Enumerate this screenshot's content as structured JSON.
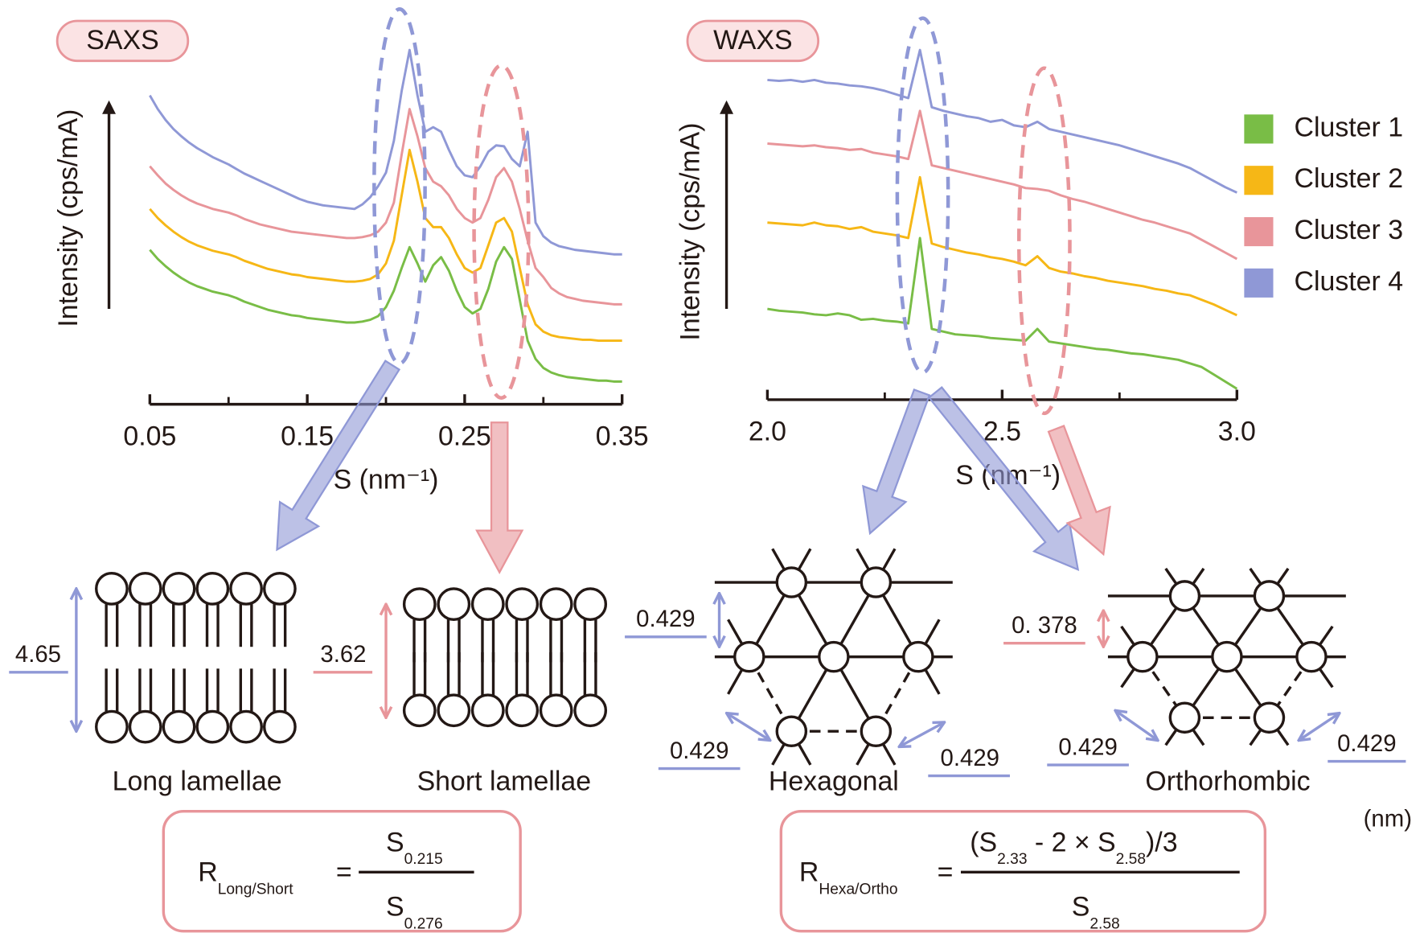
{
  "chart_data": [
    {
      "type": "line",
      "panel_label": "SAXS",
      "y_label": "Intensity (cps/mA)",
      "x_label": "S (nm⁻¹)",
      "x": [
        0.05,
        0.055,
        0.06,
        0.065,
        0.07,
        0.075,
        0.08,
        0.085,
        0.09,
        0.095,
        0.1,
        0.105,
        0.11,
        0.115,
        0.12,
        0.125,
        0.13,
        0.135,
        0.14,
        0.145,
        0.15,
        0.155,
        0.16,
        0.165,
        0.17,
        0.175,
        0.18,
        0.185,
        0.19,
        0.195,
        0.2,
        0.205,
        0.21,
        0.215,
        0.22,
        0.225,
        0.23,
        0.235,
        0.24,
        0.245,
        0.25,
        0.255,
        0.26,
        0.265,
        0.27,
        0.275,
        0.28,
        0.285,
        0.29,
        0.295,
        0.3,
        0.305,
        0.31,
        0.315,
        0.32,
        0.325,
        0.33,
        0.335,
        0.34,
        0.345,
        0.35
      ],
      "xlim": [
        0.05,
        0.35
      ],
      "xticks": [
        0.05,
        0.15,
        0.25,
        0.35
      ],
      "xminorticks": [
        0.1,
        0.2,
        0.3
      ],
      "ylim": [
        0,
        440
      ],
      "series": [
        {
          "name": "Cluster 1",
          "color": "#79bd46",
          "values": [
            170,
            160,
            152,
            145,
            139,
            134,
            130,
            127,
            124,
            122,
            120,
            117,
            113,
            110,
            107,
            104,
            102,
            100,
            98,
            97,
            95,
            94,
            93,
            92,
            91,
            90,
            90,
            91,
            93,
            97,
            107,
            125,
            150,
            173,
            155,
            135,
            153,
            162,
            147,
            125,
            107,
            100,
            105,
            127,
            157,
            173,
            160,
            115,
            70,
            50,
            40,
            35,
            32,
            30,
            29,
            28,
            27,
            26,
            26,
            25,
            25
          ]
        },
        {
          "name": "Cluster 2",
          "color": "#f6b716",
          "values": [
            215,
            205,
            197,
            190,
            184,
            179,
            175,
            172,
            169,
            167,
            165,
            162,
            158,
            155,
            152,
            149,
            147,
            145,
            143,
            142,
            140,
            139,
            138,
            137,
            136,
            135,
            135,
            136,
            138,
            143,
            155,
            180,
            230,
            280,
            245,
            205,
            195,
            195,
            183,
            165,
            150,
            145,
            150,
            175,
            200,
            205,
            190,
            150,
            110,
            88,
            80,
            76,
            74,
            73,
            72,
            71,
            71,
            70,
            70,
            70,
            70
          ]
        },
        {
          "name": "Cluster 3",
          "color": "#e8959a",
          "values": [
            262,
            252,
            243,
            236,
            230,
            225,
            221,
            218,
            215,
            213,
            211,
            208,
            204,
            201,
            198,
            196,
            194,
            192,
            190,
            189,
            188,
            187,
            186,
            185,
            184,
            183,
            183,
            184,
            186,
            190,
            200,
            222,
            275,
            325,
            295,
            260,
            245,
            240,
            230,
            215,
            205,
            200,
            205,
            225,
            250,
            260,
            245,
            215,
            180,
            150,
            140,
            128,
            122,
            118,
            116,
            114,
            113,
            112,
            111,
            110,
            110
          ]
        },
        {
          "name": "Cluster 4",
          "color": "#8f98d6",
          "values": [
            340,
            325,
            313,
            303,
            295,
            288,
            282,
            277,
            272,
            268,
            264,
            259,
            254,
            250,
            246,
            242,
            238,
            234,
            230,
            226,
            223,
            221,
            219,
            218,
            217,
            216,
            215,
            220,
            228,
            240,
            255,
            290,
            345,
            390,
            340,
            300,
            305,
            300,
            280,
            262,
            252,
            250,
            262,
            278,
            285,
            284,
            270,
            262,
            300,
            200,
            185,
            178,
            174,
            172,
            170,
            169,
            168,
            167,
            166,
            165,
            165
          ]
        }
      ]
    },
    {
      "type": "line",
      "panel_label": "WAXS",
      "y_label": "Intensity (cps/mA)",
      "x_label": "S (nm⁻¹)",
      "x": [
        2,
        2.025,
        2.05,
        2.075,
        2.1,
        2.125,
        2.15,
        2.175,
        2.2,
        2.225,
        2.25,
        2.275,
        2.3,
        2.325,
        2.35,
        2.375,
        2.4,
        2.425,
        2.45,
        2.475,
        2.5,
        2.525,
        2.55,
        2.575,
        2.6,
        2.625,
        2.65,
        2.675,
        2.7,
        2.725,
        2.75,
        2.775,
        2.8,
        2.825,
        2.85,
        2.875,
        2.9,
        2.925,
        2.95,
        2.975,
        3
      ],
      "xlim": [
        2,
        3
      ],
      "xticks": [
        {
          "value": 2,
          "label": "2.0"
        },
        2.5,
        {
          "value": 3,
          "label": "3.0"
        }
      ],
      "xminorticks": [
        2.25,
        2.75
      ],
      "ylim": [
        0,
        440
      ],
      "series": [
        {
          "name": "Cluster 1",
          "color": "#79bd46",
          "values": [
            100,
            98,
            97,
            96,
            94,
            93,
            95,
            93,
            88,
            89,
            87,
            86,
            84,
            178,
            78,
            75,
            72,
            71,
            70,
            68,
            67,
            66,
            65,
            78,
            64,
            62,
            60,
            58,
            56,
            55,
            53,
            51,
            50,
            48,
            46,
            44,
            40,
            36,
            28,
            20,
            12
          ]
        },
        {
          "name": "Cluster 2",
          "color": "#f6b716",
          "values": [
            195,
            194,
            193,
            192,
            195,
            192,
            191,
            188,
            190,
            185,
            183,
            181,
            178,
            245,
            172,
            168,
            165,
            162,
            160,
            157,
            155,
            152,
            148,
            158,
            145,
            141,
            139,
            136,
            134,
            131,
            129,
            127,
            125,
            122,
            120,
            117,
            115,
            110,
            105,
            99,
            93
          ]
        },
        {
          "name": "Cluster 3",
          "color": "#e8959a",
          "values": [
            282,
            281,
            280,
            279,
            280,
            278,
            277,
            275,
            276,
            272,
            270,
            268,
            265,
            318,
            258,
            255,
            252,
            249,
            246,
            243,
            240,
            237,
            233,
            232,
            230,
            225,
            221,
            218,
            214,
            210,
            206,
            202,
            198,
            195,
            191,
            187,
            183,
            176,
            169,
            162,
            155
          ]
        },
        {
          "name": "Cluster 4",
          "color": "#8f98d6",
          "values": [
            352,
            351,
            352,
            350,
            352,
            349,
            348,
            346,
            345,
            343,
            340,
            336,
            332,
            385,
            322,
            318,
            315,
            312,
            310,
            306,
            308,
            302,
            300,
            306,
            298,
            295,
            292,
            289,
            286,
            283,
            280,
            276,
            272,
            268,
            264,
            260,
            255,
            248,
            241,
            234,
            228
          ]
        }
      ]
    }
  ],
  "structures": [
    {
      "name": "Long lamellae",
      "spacings": [
        "4.65"
      ]
    },
    {
      "name": "Short lamellae",
      "spacings": [
        "3.62"
      ]
    },
    {
      "name": "Hexagonal",
      "spacings": [
        "0.429",
        "0.429",
        "0.429"
      ]
    },
    {
      "name": "Orthorhombic",
      "spacings": [
        "0. 378",
        "0.429",
        "0.429"
      ]
    }
  ],
  "unit": "(nm)",
  "formulas": [
    {
      "symbol": "R",
      "subscript": "Long/Short",
      "equals": "=",
      "numerator": [
        {
          "text": "S"
        },
        {
          "sub": "0.215"
        }
      ],
      "denominator": [
        {
          "text": "S"
        },
        {
          "sub": "0.276"
        }
      ]
    },
    {
      "symbol": "R",
      "subscript": "Hexa/Ortho",
      "equals": "=",
      "numerator": [
        {
          "text": "(S"
        },
        {
          "sub": "2.33"
        },
        {
          "text": " - 2 × S"
        },
        {
          "sub": "2.58"
        },
        {
          "text": ")/3"
        }
      ],
      "denominator": [
        {
          "text": "S"
        },
        {
          "sub": "2.58"
        }
      ]
    }
  ]
}
